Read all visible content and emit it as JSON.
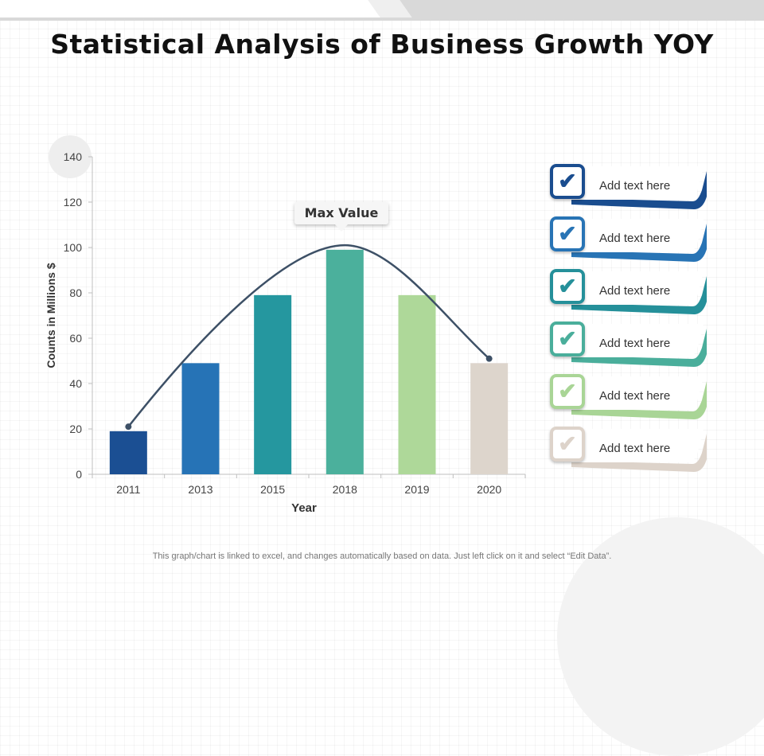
{
  "page": {
    "title": "Statistical Analysis of Business Growth YOY",
    "footer": "This graph/chart is linked to excel, and changes automatically based on data. Just left click on it and select “Edit Data”."
  },
  "callout": {
    "label": "Max Value"
  },
  "checklist": {
    "items": [
      {
        "label": "Add text here",
        "color": "#1a4d8f",
        "icon": "checkmark-icon"
      },
      {
        "label": "Add text here",
        "color": "#2874b5",
        "icon": "checkmark-icon"
      },
      {
        "label": "Add text here",
        "color": "#25909a",
        "icon": "checkmark-icon"
      },
      {
        "label": "Add text here",
        "color": "#4aae9b",
        "icon": "checkmark-icon"
      },
      {
        "label": "Add text here",
        "color": "#a9d596",
        "icon": "checkmark-icon"
      },
      {
        "label": "Add text here",
        "color": "#ddd3ca",
        "icon": "checkmark-icon"
      }
    ]
  },
  "chart_data": {
    "type": "bar",
    "categories": [
      "2011",
      "2013",
      "2015",
      "2018",
      "2019",
      "2020"
    ],
    "values": [
      19,
      49,
      79,
      99,
      79,
      49
    ],
    "bar_colors": [
      "#1b4f93",
      "#2673b6",
      "#25979f",
      "#4bb09c",
      "#aed899",
      "#ddd5cc"
    ],
    "trend_line": {
      "type": "smooth-curve",
      "color": "#3d5066",
      "start": [
        "2011",
        21
      ],
      "peak": [
        "2018",
        101
      ],
      "end": [
        "2020",
        51
      ]
    },
    "xlabel": "Year",
    "ylabel": "Counts in Millions $",
    "ylim": [
      0,
      140
    ],
    "yticks": [
      0,
      20,
      40,
      60,
      80,
      100,
      120,
      140
    ],
    "grid": false,
    "legend": "none"
  }
}
